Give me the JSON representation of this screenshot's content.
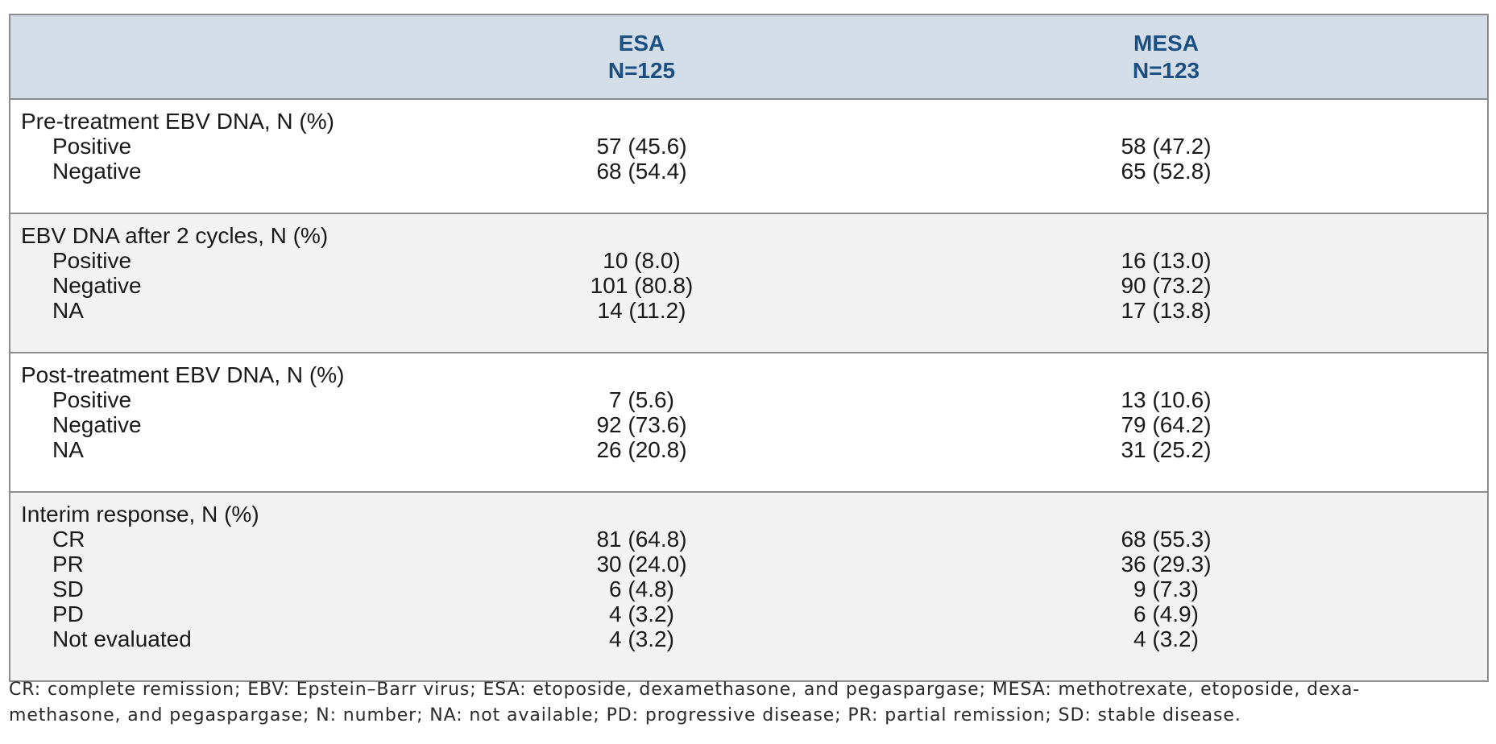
{
  "table": {
    "columns": [
      {
        "name": "ESA",
        "n": "N=125"
      },
      {
        "name": "MESA",
        "n": "N=123"
      }
    ],
    "sections": [
      {
        "label": "Pre-treatment EBV DNA, N (%)",
        "rows": [
          {
            "label": "Positive",
            "esa": "57 (45.6)",
            "mesa": "58 (47.2)"
          },
          {
            "label": "Negative",
            "esa": "68 (54.4)",
            "mesa": "65 (52.8)"
          }
        ]
      },
      {
        "label": "EBV DNA after 2 cycles, N (%)",
        "rows": [
          {
            "label": "Positive",
            "esa": "10 (8.0)",
            "mesa": "16 (13.0)"
          },
          {
            "label": "Negative",
            "esa": "101 (80.8)",
            "mesa": "90 (73.2)"
          },
          {
            "label": "NA",
            "esa": "14 (11.2)",
            "mesa": "17 (13.8)"
          }
        ]
      },
      {
        "label": "Post-treatment EBV DNA, N (%)",
        "rows": [
          {
            "label": "Positive",
            "esa": "7 (5.6)",
            "mesa": "13 (10.6)"
          },
          {
            "label": "Negative",
            "esa": "92 (73.6)",
            "mesa": "79 (64.2)"
          },
          {
            "label": "NA",
            "esa": "26 (20.8)",
            "mesa": "31 (25.2)"
          }
        ]
      },
      {
        "label": "Interim response, N (%)",
        "rows": [
          {
            "label": "CR",
            "esa": "81 (64.8)",
            "mesa": "68 (55.3)"
          },
          {
            "label": "PR",
            "esa": "30 (24.0)",
            "mesa": "36 (29.3)"
          },
          {
            "label": "SD",
            "esa": "6 (4.8)",
            "mesa": "9 (7.3)"
          },
          {
            "label": "PD",
            "esa": "4 (3.2)",
            "mesa": "6 (4.9)"
          },
          {
            "label": "Not evaluated",
            "esa": "4 (3.2)",
            "mesa": "4 (3.2)"
          }
        ]
      }
    ]
  },
  "footnote": {
    "line1": "CR: complete remission; EBV: Epstein–Barr virus; ESA: etoposide, dexamethasone, and pegaspargase; MESA: methotrexate, etoposide, dexa-",
    "line2": "methasone, and pegaspargase; N: number; NA: not available; PD: progressive disease; PR: partial remission; SD: stable disease."
  },
  "colors": {
    "header_bg": "#d2dde7",
    "header_text": "#1b4f82",
    "section_alt_bg": "#f2f2f2",
    "border_dark": "#8c8c8c",
    "border_light": "#a8a8a8"
  }
}
